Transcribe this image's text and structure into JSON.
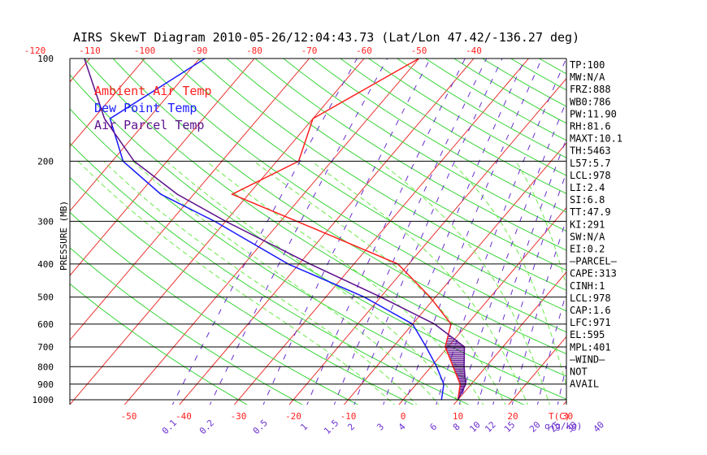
{
  "chart_data": {
    "type": "line",
    "title": "AIRS SkewT Diagram 2010-05-26/12:04:43.73 (Lat/Lon 47.42/-136.27 deg)",
    "ylabel": "PRESSURE (MB)",
    "top_axis_ticks": [
      "-120",
      "-110",
      "-100",
      "-90",
      "-80",
      "-70",
      "-60",
      "-50",
      "-40"
    ],
    "bottom_temp_ticks": [
      "-50",
      "-40",
      "-30",
      "-20",
      "-10",
      "0",
      "10",
      "20",
      "30"
    ],
    "bottom_temp_unit": "T(C)",
    "mixing_ratio_ticks": [
      "0.1",
      "0.2",
      "0.5",
      "1",
      "1.5",
      "2",
      "3",
      "4",
      "6",
      "8",
      "10",
      "12",
      "15",
      "20",
      "25",
      "30",
      "40"
    ],
    "mixing_ratio_unit": "q(g/kg)",
    "pressure_ticks": [
      "100",
      "200",
      "300",
      "400",
      "500",
      "600",
      "700",
      "800",
      "900",
      "1000"
    ],
    "legend": [
      {
        "label": "Ambient Air Temp",
        "color": "#ff2020"
      },
      {
        "label": "Dew Point Temp",
        "color": "#1a1aff"
      },
      {
        "label": "Air Parcel Temp",
        "color": "#5b0f8c"
      }
    ],
    "series": [
      {
        "name": "Ambient Air Temp",
        "color": "#ff2020",
        "points": [
          [
            100,
            -50
          ],
          [
            150,
            -60
          ],
          [
            200,
            -56
          ],
          [
            250,
            -63
          ],
          [
            300,
            -47
          ],
          [
            400,
            -22
          ],
          [
            500,
            -11
          ],
          [
            600,
            -3
          ],
          [
            700,
            -0.5
          ],
          [
            800,
            4
          ],
          [
            900,
            8
          ],
          [
            1000,
            10
          ]
        ]
      },
      {
        "name": "Dew Point Temp",
        "color": "#1a1aff",
        "points": [
          [
            100,
            -89
          ],
          [
            150,
            -97
          ],
          [
            200,
            -88
          ],
          [
            250,
            -76
          ],
          [
            300,
            -62
          ],
          [
            400,
            -42
          ],
          [
            500,
            -23
          ],
          [
            600,
            -10
          ],
          [
            700,
            -4
          ],
          [
            800,
            1
          ],
          [
            900,
            5
          ],
          [
            1000,
            7
          ]
        ]
      },
      {
        "name": "Air Parcel Temp",
        "color": "#5b0f8c",
        "points": [
          [
            100,
            -111
          ],
          [
            150,
            -98
          ],
          [
            200,
            -86
          ],
          [
            250,
            -73
          ],
          [
            300,
            -60
          ],
          [
            400,
            -38
          ],
          [
            500,
            -20
          ],
          [
            600,
            -6
          ],
          [
            700,
            3
          ],
          [
            800,
            6
          ],
          [
            900,
            9
          ],
          [
            1000,
            10
          ]
        ]
      }
    ],
    "indices": [
      "TP:100",
      "MW:N/A",
      "FRZ:888",
      "WB0:786",
      "PW:11.90",
      "RH:81.6",
      "MAXT:10.1",
      "TH:5463",
      "L57:5.7",
      "LCL:978",
      "LI:2.4",
      "SI:6.8",
      "TT:47.9",
      "KI:291",
      "SW:N/A",
      "EI:0.2",
      "—PARCEL—",
      "CAPE:313",
      "CINH:1",
      "LCL:978",
      "CAP:1.6",
      "LFC:971",
      "EL:595",
      "MPL:401",
      "—WIND—",
      "NOT",
      "AVAIL"
    ],
    "colors": {
      "isotherm": "#e8342f",
      "dry_adiabat": "#3ad53a",
      "moist_adiabat": "#6bea4a",
      "mixing_ratio": "#6a2fd0",
      "isobar": "#000000"
    }
  }
}
